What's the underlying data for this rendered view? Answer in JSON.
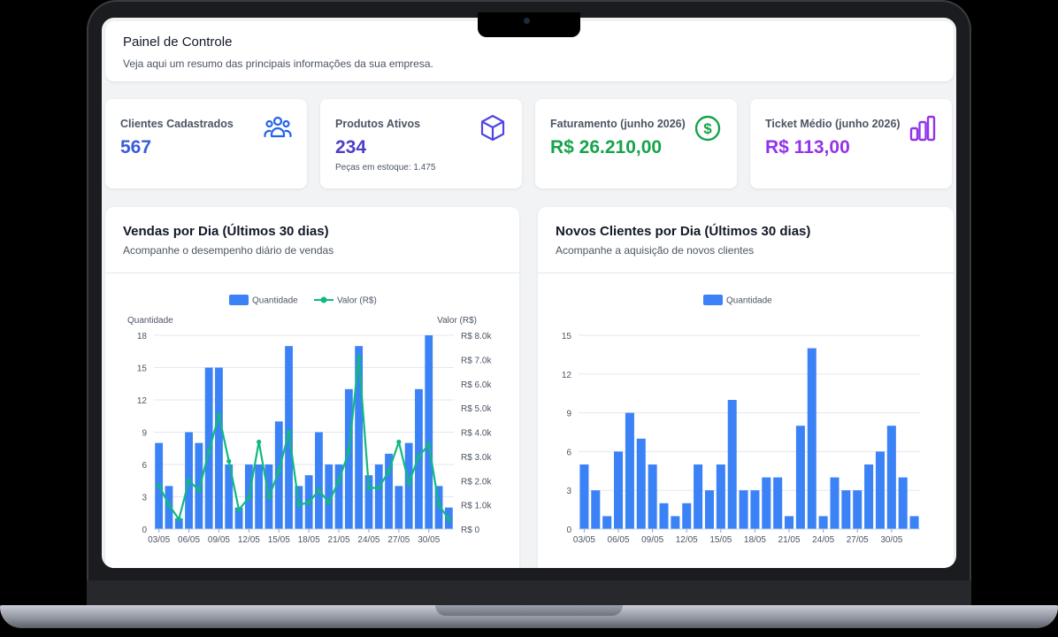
{
  "header": {
    "title": "Painel de Controle",
    "subtitle": "Veja aqui um resumo das principais informações da sua empresa."
  },
  "stats": [
    {
      "label": "Clientes Cadastrados",
      "value": "567",
      "note": "",
      "color": "#3b5bdb",
      "icon": "users-icon"
    },
    {
      "label": "Produtos Ativos",
      "value": "234",
      "note": "Peças em estoque: 1.475",
      "color": "#4c3fc7",
      "icon": "box-icon"
    },
    {
      "label": "Faturamento (junho 2026)",
      "value": "R$ 26.210,00",
      "note": "",
      "color": "#16a34a",
      "icon": "dollar-circle-icon"
    },
    {
      "label": "Ticket Médio (junho 2026)",
      "value": "R$ 113,00",
      "note": "",
      "color": "#9333ea",
      "icon": "bar-chart-icon"
    }
  ],
  "sales_card": {
    "title": "Vendas por Dia (Últimos 30 dias)",
    "subtitle": "Acompanhe o desempenho diário de vendas"
  },
  "clients_card": {
    "title": "Novos Clientes por Dia (Últimos 30 dias)",
    "subtitle": "Acompanhe a aquisição de novos clientes"
  },
  "chart_data": [
    {
      "type": "bar",
      "title": "Vendas por Dia (Últimos 30 dias)",
      "categories": [
        "03/05",
        "04/05",
        "05/05",
        "06/05",
        "07/05",
        "08/05",
        "09/05",
        "10/05",
        "11/05",
        "12/05",
        "13/05",
        "14/05",
        "15/05",
        "16/05",
        "17/05",
        "18/05",
        "19/05",
        "20/05",
        "21/05",
        "22/05",
        "23/05",
        "24/05",
        "25/05",
        "26/05",
        "27/05",
        "28/05",
        "29/05",
        "30/05",
        "31/05",
        "01/06"
      ],
      "tick_labels": [
        "03/05",
        "06/05",
        "09/05",
        "12/05",
        "15/05",
        "18/05",
        "21/05",
        "24/05",
        "27/05",
        "30/05"
      ],
      "series": [
        {
          "name": "Quantidade",
          "type": "bar",
          "axis": "left",
          "color": "#3b82f6",
          "values": [
            8,
            4,
            1,
            9,
            8,
            15,
            15,
            6,
            2,
            6,
            6,
            6,
            10,
            17,
            4,
            5,
            9,
            6,
            6,
            13,
            17,
            5,
            6,
            7,
            4,
            8,
            13,
            18,
            4,
            2
          ]
        },
        {
          "name": "Valor (R$)",
          "type": "line",
          "axis": "right",
          "color": "#10b981",
          "values": [
            1800,
            1000,
            400,
            2000,
            1600,
            3200,
            4700,
            2800,
            800,
            1300,
            3600,
            1300,
            2400,
            4000,
            1000,
            1100,
            1600,
            1100,
            2000,
            3200,
            7100,
            1700,
            1700,
            2400,
            3600,
            1900,
            3000,
            3500,
            1000,
            400
          ]
        }
      ],
      "ylabel": "Quantidade",
      "y2label": "Valor (R$)",
      "ylim": [
        0,
        18
      ],
      "y_ticks": [
        "0",
        "3",
        "6",
        "9",
        "12",
        "15",
        "18"
      ],
      "y2lim": [
        0,
        8000
      ],
      "y2_ticks": [
        "R$ 0",
        "R$ 1.0k",
        "R$ 2.0k",
        "R$ 3.0k",
        "R$ 4.0k",
        "R$ 5.0k",
        "R$ 6.0k",
        "R$ 7.0k",
        "R$ 8.0k"
      ],
      "legend": "top",
      "grid": true
    },
    {
      "type": "bar",
      "title": "Novos Clientes por Dia (Últimos 30 dias)",
      "categories": [
        "03/05",
        "04/05",
        "05/05",
        "06/05",
        "07/05",
        "08/05",
        "09/05",
        "10/05",
        "11/05",
        "12/05",
        "13/05",
        "14/05",
        "15/05",
        "16/05",
        "17/05",
        "18/05",
        "19/05",
        "20/05",
        "21/05",
        "22/05",
        "23/05",
        "24/05",
        "25/05",
        "26/05",
        "27/05",
        "28/05",
        "29/05",
        "30/05",
        "31/05",
        "01/06"
      ],
      "tick_labels": [
        "03/05",
        "06/05",
        "09/05",
        "12/05",
        "15/05",
        "18/05",
        "21/05",
        "24/05",
        "27/05",
        "30/05"
      ],
      "series": [
        {
          "name": "Quantidade",
          "type": "bar",
          "color": "#3b82f6",
          "values": [
            5,
            3,
            1,
            6,
            9,
            7,
            5,
            2,
            1,
            2,
            5,
            3,
            5,
            10,
            3,
            3,
            4,
            4,
            1,
            8,
            14,
            1,
            4,
            3,
            3,
            5,
            6,
            8,
            4,
            1
          ]
        }
      ],
      "ylim": [
        0,
        15
      ],
      "y_ticks": [
        "0",
        "3",
        "6",
        "9",
        "12",
        "15"
      ],
      "legend": "top",
      "grid": true
    }
  ]
}
